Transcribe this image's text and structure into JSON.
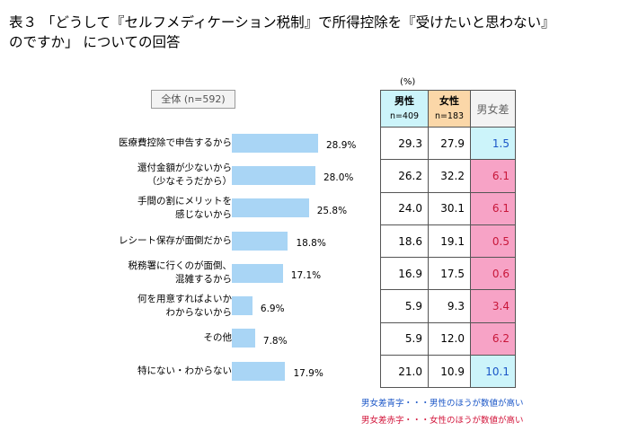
{
  "title": {
    "line1": "表３ 「どうして『セルフメディケーション税制』で所得控除を『受けたいと思わない』",
    "line2": "のですか」 についての回答"
  },
  "sample_label": "全体 (n=592)",
  "unit": "(%)",
  "table": {
    "male": {
      "label": "男性",
      "n": "n=409"
    },
    "female": {
      "label": "女性",
      "n": "n=183"
    },
    "diff": {
      "label": "男女差"
    }
  },
  "notes": {
    "blue": "男女差青字・・・男性のほうが数値が高い",
    "red": "男女差赤字・・・女性のほうが数値が高い"
  },
  "colors": {
    "bar": "#a9d5f5",
    "male_header": "#ccf4fa",
    "female_header": "#fbd7a8",
    "diff_male_higher": "#1a56c7",
    "diff_female_higher": "#c8173a"
  },
  "chart_data": {
    "type": "bar",
    "orientation": "horizontal",
    "categories": [
      [
        "医療費控除で申告するから"
      ],
      [
        "還付金額が少ないから",
        "（少なそうだから）"
      ],
      [
        "手間の割にメリットを",
        "感じないから"
      ],
      [
        "レシート保存が面倒だから"
      ],
      [
        "税務署に行くのが面倒、",
        "混雑するから"
      ],
      [
        "何を用意すればよいか",
        "わからないから"
      ],
      [
        "その他"
      ],
      [
        "特にない・わからない"
      ]
    ],
    "values": [
      28.9,
      28.0,
      25.8,
      18.8,
      17.1,
      6.9,
      7.8,
      17.9
    ],
    "value_labels": [
      "28.9%",
      "28.0%",
      "25.8%",
      "18.8%",
      "17.1%",
      "6.9%",
      "7.8%",
      "17.9%"
    ],
    "xlim": [
      0,
      30
    ],
    "table_rows": [
      {
        "male": "29.3",
        "female": "27.9",
        "diff": "1.5",
        "higher": "male"
      },
      {
        "male": "26.2",
        "female": "32.2",
        "diff": "6.1",
        "higher": "female"
      },
      {
        "male": "24.0",
        "female": "30.1",
        "diff": "6.1",
        "higher": "female"
      },
      {
        "male": "18.6",
        "female": "19.1",
        "diff": "0.5",
        "higher": "female"
      },
      {
        "male": "16.9",
        "female": "17.5",
        "diff": "0.6",
        "higher": "female"
      },
      {
        "male": "5.9",
        "female": "9.3",
        "diff": "3.4",
        "higher": "female"
      },
      {
        "male": "5.9",
        "female": "12.0",
        "diff": "6.2",
        "higher": "female"
      },
      {
        "male": "21.0",
        "female": "10.9",
        "diff": "10.1",
        "higher": "male"
      }
    ]
  }
}
